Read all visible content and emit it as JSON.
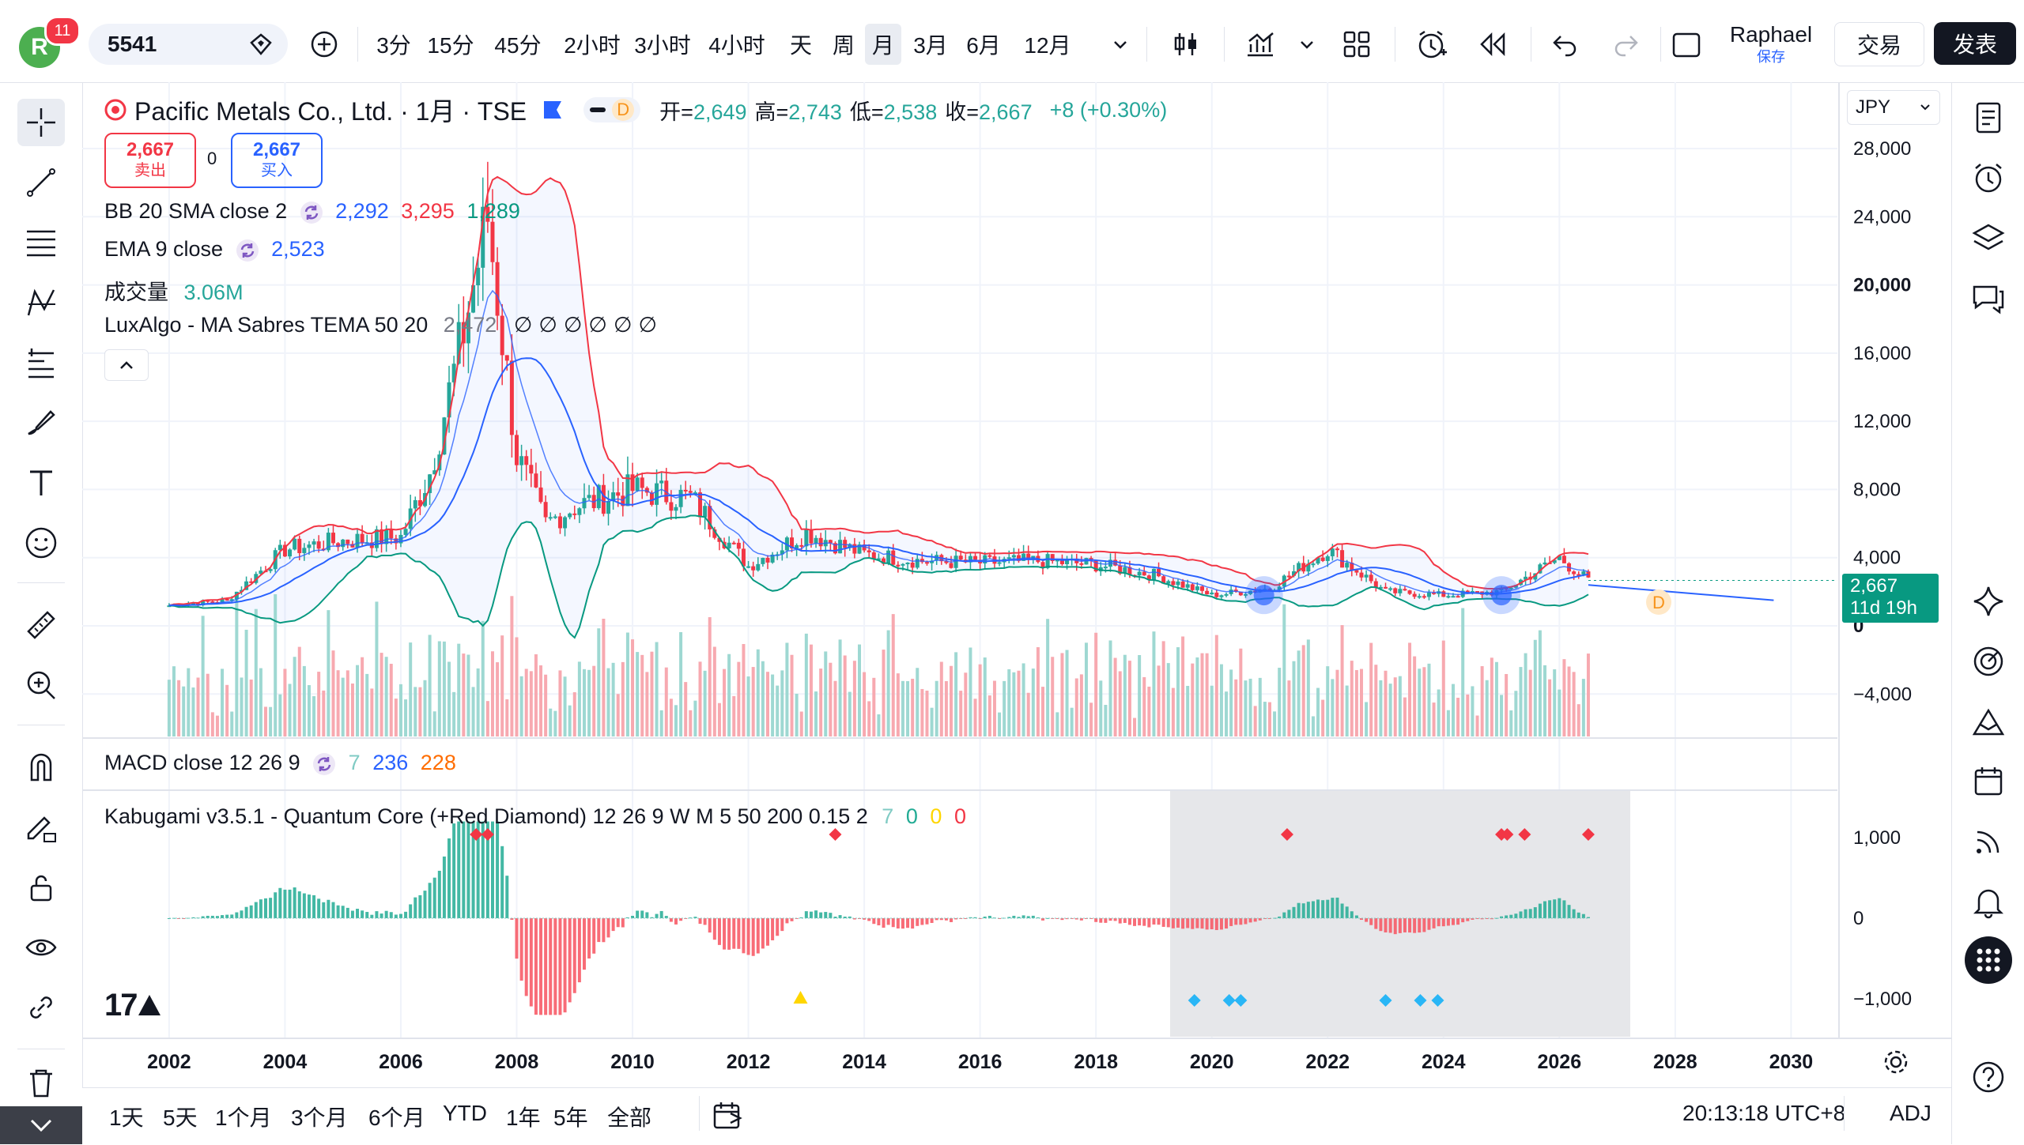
{
  "topbar": {
    "avatar_letter": "R",
    "notifications": "11",
    "symbol": "5541",
    "intervals": [
      "3分",
      "15分",
      "45分",
      "2小时",
      "3小时",
      "4小时",
      "天",
      "周",
      "月",
      "3月",
      "6月",
      "12月"
    ],
    "selected_interval": "月",
    "user_name": "Raphael",
    "save_label": "保存",
    "trade_label": "交易",
    "publish_label": "发表"
  },
  "header": {
    "title": "Pacific Metals Co., Ltd. · 1月 · TSE",
    "badge": "D",
    "ohlc": [
      {
        "label": "开=",
        "value": "2,649"
      },
      {
        "label": "高=",
        "value": "2,743"
      },
      {
        "label": "低=",
        "value": "2,538"
      },
      {
        "label": "收=",
        "value": "2,667"
      }
    ],
    "change": "+8 (+0.30%)",
    "sell_price": "2,667",
    "sell_label": "卖出",
    "spread": "0",
    "buy_price": "2,667",
    "buy_label": "买入"
  },
  "indicators": {
    "bb": {
      "label": "BB 20 SMA close 2",
      "basis": "2,292",
      "upper": "3,295",
      "lower": "1,289"
    },
    "ema": {
      "label": "EMA 9 close",
      "value": "2,523"
    },
    "volume": {
      "label": "成交量",
      "value": "3.06M"
    },
    "luxalgo": {
      "label": "LuxAlgo - MA Sabres TEMA 50 20",
      "value": "2,472",
      "empty_marks": [
        "∅",
        "∅",
        "∅",
        "∅",
        "∅",
        "∅"
      ]
    },
    "macd": {
      "label": "MACD close 12 26 9",
      "v1": "7",
      "v2": "236",
      "v3": "228"
    },
    "kabugami": {
      "label": "Kabugami v3.5.1 - Quantum Core (+Red Diamond) 12 26 9 W M 5 50 200 0.15 2",
      "v1": "7",
      "v2": "0",
      "v3": "0",
      "v4": "0"
    }
  },
  "price_axis": {
    "currency": "JPY",
    "labels": [
      "28,000",
      "24,000",
      "20,000",
      "16,000",
      "12,000",
      "8,000",
      "4,000",
      "0",
      "−4,000"
    ],
    "current_price": "2,667",
    "countdown": "11d 19h"
  },
  "macd_axis": {
    "labels": [
      "1,000",
      "0",
      "−1,000"
    ]
  },
  "time_axis": {
    "labels": [
      "2002",
      "2004",
      "2006",
      "2008",
      "2010",
      "2012",
      "2014",
      "2016",
      "2018",
      "2020",
      "2022",
      "2024",
      "2026",
      "2028",
      "2030"
    ]
  },
  "bottombar": {
    "ranges": [
      "1天",
      "5天",
      "1个月",
      "3个月",
      "6个月",
      "YTD",
      "1年",
      "5年",
      "全部"
    ],
    "clock": "20:13:18 UTC+8",
    "adj_label": "ADJ"
  },
  "logo_text": "17",
  "colors": {
    "up": "#26a69a",
    "down": "#f23645",
    "blue": "#2962ff",
    "bb_upper": "#f23645",
    "bb_lower": "#26a69a",
    "accent": "#131722"
  },
  "chart_data": {
    "type": "line",
    "title": "Pacific Metals Co., Ltd. · 1月 · TSE",
    "x": [
      2002,
      2003,
      2004,
      2005,
      2006,
      2006.5,
      2007,
      2007.5,
      2008,
      2008.5,
      2009,
      2010,
      2011,
      2012,
      2013,
      2014,
      2015,
      2016,
      2017,
      2018,
      2019,
      2020,
      2021,
      2022,
      2023,
      2024,
      2025,
      2026,
      2026.5
    ],
    "series": [
      {
        "name": "收",
        "values": [
          1200,
          1500,
          4500,
          5000,
          5200,
          9000,
          16000,
          24000,
          10000,
          6000,
          7000,
          8000,
          7500,
          3500,
          5500,
          4200,
          3800,
          3700,
          3800,
          3600,
          3000,
          1800,
          2200,
          4500,
          2000,
          1800,
          2000,
          4000,
          2667
        ]
      }
    ],
    "ylim": [
      -6000,
      30000
    ],
    "xlim": [
      2000.5,
      2030.8
    ]
  }
}
